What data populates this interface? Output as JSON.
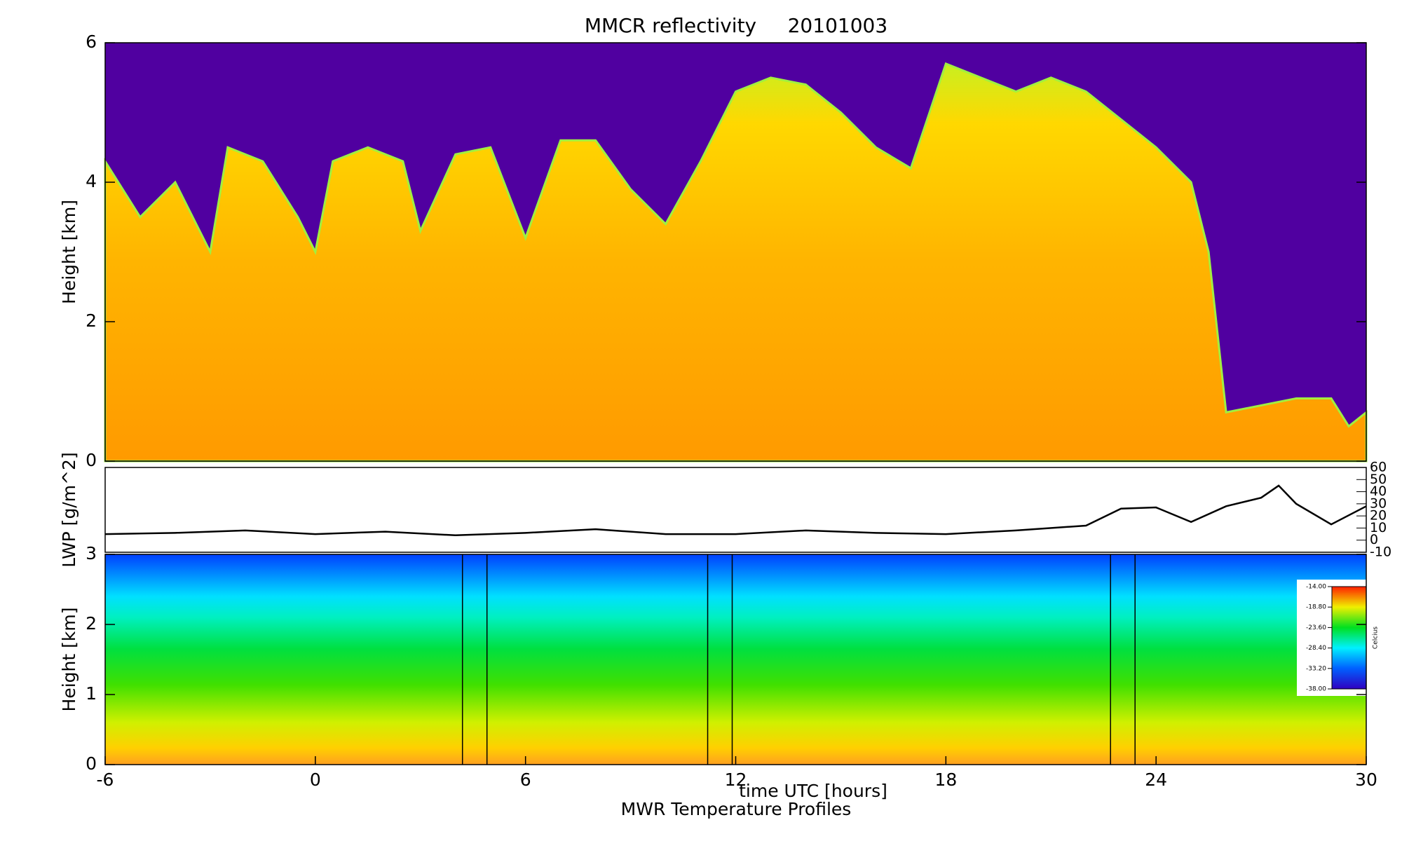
{
  "chart_data": [
    {
      "type": "area",
      "title": "MMCR reflectivity     20101003",
      "ylabel": "Height [km]",
      "xlim": [
        -6,
        30
      ],
      "ylim": [
        0,
        6
      ],
      "yticks": [
        0,
        2,
        4,
        6
      ],
      "color": "#ffb000",
      "background": "#5000a0",
      "x": [
        -6,
        -5,
        -4,
        -3,
        -2.5,
        -1.5,
        -0.5,
        0,
        0.5,
        1.5,
        2.5,
        3,
        4,
        5,
        6,
        7,
        8,
        9,
        10,
        11,
        12,
        13,
        14,
        15,
        16,
        17,
        18,
        19,
        20,
        21,
        22,
        23,
        24,
        25,
        25.5,
        26,
        28,
        29,
        29.5,
        30
      ],
      "values": [
        4.3,
        3.5,
        4.0,
        3.0,
        4.5,
        4.3,
        3.5,
        3.0,
        4.3,
        4.5,
        4.3,
        3.3,
        4.4,
        4.5,
        3.2,
        4.6,
        4.6,
        3.9,
        3.4,
        4.3,
        5.3,
        5.5,
        5.4,
        5.0,
        4.5,
        4.2,
        5.7,
        5.5,
        5.3,
        5.5,
        5.3,
        4.9,
        4.5,
        4.0,
        3.0,
        0.7,
        0.9,
        0.9,
        0.5,
        0.7
      ]
    },
    {
      "type": "line",
      "ylabel": "LWP [g/m^2]",
      "xlim": [
        -6,
        30
      ],
      "ylim": [
        -10,
        60
      ],
      "yticks": [
        60,
        50,
        40,
        30,
        20,
        10,
        0,
        -10
      ],
      "color": "#000000",
      "x": [
        -6,
        -4,
        -2,
        0,
        2,
        4,
        6,
        8,
        10,
        12,
        14,
        16,
        18,
        20,
        22,
        23,
        24,
        25,
        26,
        27,
        27.5,
        28,
        29,
        30
      ],
      "values": [
        5,
        6,
        8,
        5,
        7,
        4,
        6,
        9,
        5,
        5,
        8,
        6,
        5,
        8,
        12,
        26,
        27,
        15,
        28,
        35,
        45,
        30,
        13,
        28
      ]
    },
    {
      "type": "contour",
      "xlabel": "time UTC [hours]",
      "subtitle": "MWR Temperature Profiles",
      "ylabel": "Height [km]",
      "xlim": [
        -6,
        30
      ],
      "ylim": [
        0,
        3
      ],
      "yticks": [
        0,
        1,
        2,
        3
      ],
      "xticks": [
        -6,
        0,
        6,
        12,
        18,
        24,
        30
      ],
      "vlines": [
        4.2,
        4.9,
        11.2,
        11.9,
        22.7,
        23.4
      ],
      "colorbar": {
        "label": "Celcius",
        "clim": [
          -38,
          -14
        ],
        "ticks": [
          {
            "value": -14,
            "label": "-14.00"
          },
          {
            "value": -18.8,
            "label": "-18.80"
          },
          {
            "value": -23.6,
            "label": "-23.60"
          },
          {
            "value": -28.4,
            "label": "-28.40"
          },
          {
            "value": -33.2,
            "label": "-33.20"
          },
          {
            "value": -38,
            "label": "-38.00"
          }
        ]
      }
    }
  ]
}
